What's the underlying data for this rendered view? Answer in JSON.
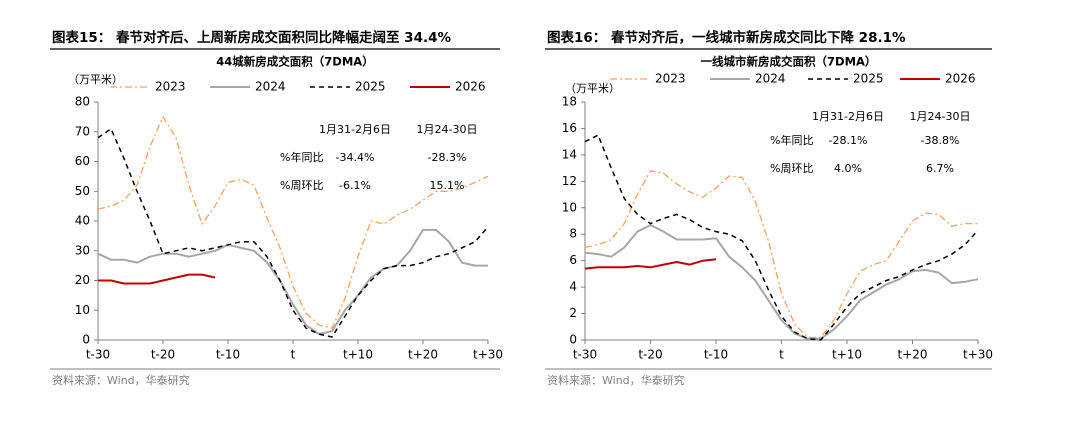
{
  "chart_data": [
    {
      "type": "line",
      "figure_title": "图表15：  春节对齐后、上周新房成交面积同比降幅走阔至 34.4%",
      "title": "44城新房成交面积（7DMA）",
      "y_unit": "（万平米）",
      "source": "资料来源：Wind，华泰研究",
      "x": [
        -30,
        -28,
        -26,
        -24,
        -22,
        -20,
        -18,
        -16,
        -14,
        -12,
        -10,
        -8,
        -6,
        -4,
        -2,
        0,
        2,
        4,
        6,
        8,
        10,
        12,
        14,
        16,
        18,
        20,
        22,
        24,
        26,
        28,
        30
      ],
      "xlim": [
        -30,
        30
      ],
      "xticks": [
        {
          "value": -30,
          "label": "t-30"
        },
        {
          "value": -20,
          "label": "t-20"
        },
        {
          "value": -10,
          "label": "t-10"
        },
        {
          "value": 0,
          "label": "t"
        },
        {
          "value": 10,
          "label": "t+10"
        },
        {
          "value": 20,
          "label": "t+20"
        },
        {
          "value": 30,
          "label": "t+30"
        }
      ],
      "ylim": [
        0,
        80
      ],
      "yticks": [
        0,
        10,
        20,
        30,
        40,
        50,
        60,
        70,
        80
      ],
      "grid": false,
      "series": [
        {
          "name": "2023",
          "color": "#f5a25d",
          "line_style": "dashdot",
          "values": [
            44,
            45,
            47,
            52,
            65,
            75,
            68,
            52,
            39,
            45,
            53,
            54,
            52,
            41,
            31,
            18,
            9,
            5,
            4,
            14,
            28,
            40,
            39,
            42,
            44,
            47,
            50,
            50,
            51,
            53,
            55
          ]
        },
        {
          "name": "2024",
          "color": "#a6a6a6",
          "line_style": "solid",
          "values": [
            29,
            27,
            27,
            26,
            28,
            29,
            29,
            28,
            29,
            30,
            32,
            31,
            30,
            26,
            20,
            12,
            5,
            2,
            3,
            10,
            15,
            21,
            24,
            25,
            30,
            37,
            37,
            33,
            26,
            25,
            25
          ]
        },
        {
          "name": "2025",
          "color": "#000000",
          "line_style": "dashed",
          "values": [
            68,
            71,
            61,
            50,
            40,
            29,
            30,
            31,
            30,
            31,
            32,
            33,
            33,
            28,
            20,
            10,
            4,
            2,
            1,
            8,
            15,
            20,
            24,
            25,
            25,
            26,
            28,
            29,
            31,
            33,
            38
          ]
        },
        {
          "name": "2026",
          "color": "#c00000",
          "line_style": "solid",
          "values": [
            20,
            20,
            19,
            19,
            19,
            20,
            21,
            22,
            22,
            21,
            null,
            null,
            null,
            null,
            null,
            null,
            null,
            null,
            null,
            null,
            null,
            null,
            null,
            null,
            null,
            null,
            null,
            null,
            null,
            null,
            null
          ]
        }
      ],
      "annotation_table": {
        "columns": [
          "1月31-2月6日",
          "1月24-30日"
        ],
        "rows": [
          [
            "%年同比",
            "-34.4%",
            "-28.3%"
          ],
          [
            "%周环比",
            "-6.1%",
            "15.1%"
          ]
        ]
      }
    },
    {
      "type": "line",
      "figure_title": "图表16：  春节对齐后，一线城市新房成交同比下降 28.1%",
      "title": "一线城市新房成交面积（7DMA）",
      "y_unit": "（万平米）",
      "source": "资料来源：Wind，华泰研究",
      "x": [
        -30,
        -28,
        -26,
        -24,
        -22,
        -20,
        -18,
        -16,
        -14,
        -12,
        -10,
        -8,
        -6,
        -4,
        -2,
        0,
        2,
        4,
        6,
        8,
        10,
        12,
        14,
        16,
        18,
        20,
        22,
        24,
        26,
        28,
        30
      ],
      "xlim": [
        -30,
        30
      ],
      "xticks": [
        {
          "value": -30,
          "label": "t-30"
        },
        {
          "value": -20,
          "label": "t-20"
        },
        {
          "value": -10,
          "label": "t-10"
        },
        {
          "value": 0,
          "label": "t"
        },
        {
          "value": 10,
          "label": "t+10"
        },
        {
          "value": 20,
          "label": "t+20"
        },
        {
          "value": 30,
          "label": "t+30"
        }
      ],
      "ylim": [
        0,
        18
      ],
      "yticks": [
        0,
        2,
        4,
        6,
        8,
        10,
        12,
        14,
        16,
        18
      ],
      "grid": false,
      "series": [
        {
          "name": "2023",
          "color": "#f5a25d",
          "line_style": "dashdot",
          "values": [
            7,
            7.2,
            7.6,
            8.8,
            11,
            12.8,
            12.6,
            11.8,
            11.2,
            10.8,
            11.5,
            12.4,
            12.3,
            10.5,
            7.5,
            3.5,
            1.2,
            0.2,
            0.2,
            1.5,
            3.5,
            5.2,
            5.7,
            6,
            7.5,
            9,
            9.6,
            9.5,
            8.6,
            8.8,
            8.8
          ]
        },
        {
          "name": "2024",
          "color": "#a6a6a6",
          "line_style": "solid",
          "values": [
            6.6,
            6.5,
            6.3,
            7,
            8.2,
            8.7,
            8.2,
            7.6,
            7.6,
            7.6,
            7.7,
            6.3,
            5.5,
            4.5,
            3,
            1.5,
            0.5,
            0.1,
            0.1,
            0.8,
            1.8,
            3,
            3.6,
            4.2,
            4.6,
            5.2,
            5.3,
            5.1,
            4.3,
            4.4,
            4.6
          ]
        },
        {
          "name": "2025",
          "color": "#000000",
          "line_style": "dashed",
          "values": [
            15,
            15.5,
            13,
            10.7,
            9.5,
            8.8,
            9.2,
            9.5,
            9.1,
            8.5,
            8.2,
            8,
            7.5,
            6,
            3.8,
            1.8,
            0.6,
            0.1,
            0,
            1.2,
            2.5,
            3.5,
            4,
            4.5,
            4.8,
            5.3,
            5.7,
            6,
            6.5,
            7.2,
            8.3
          ]
        },
        {
          "name": "2026",
          "color": "#c00000",
          "line_style": "solid",
          "values": [
            5.4,
            5.5,
            5.5,
            5.5,
            5.6,
            5.5,
            5.7,
            5.9,
            5.7,
            6,
            6.1,
            null,
            null,
            null,
            null,
            null,
            null,
            null,
            null,
            null,
            null,
            null,
            null,
            null,
            null,
            null,
            null,
            null,
            null,
            null,
            null
          ]
        }
      ],
      "annotation_table": {
        "columns": [
          "1月31-2月6日",
          "1月24-30日"
        ],
        "rows": [
          [
            "%年同比",
            "-28.1%",
            "-38.8%"
          ],
          [
            "%周环比",
            "4.0%",
            "6.7%"
          ]
        ]
      }
    }
  ]
}
